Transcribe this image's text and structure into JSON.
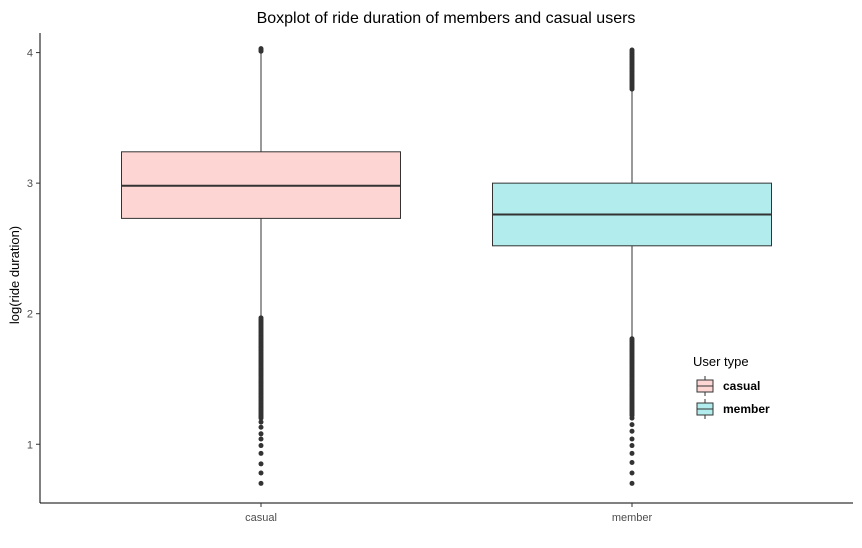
{
  "chart_data": {
    "type": "boxplot",
    "title": "Boxplot of ride duration of members and casual users",
    "xlabel": "",
    "ylabel": "log(ride duration)",
    "categories": [
      "casual",
      "member"
    ],
    "ylim": [
      0.55,
      4.15
    ],
    "yticks": [
      1,
      2,
      3,
      4
    ],
    "grid": false,
    "legend": {
      "title": "User type",
      "placement": "right",
      "entries": [
        "casual",
        "member"
      ]
    },
    "colors": {
      "casual": "#fdd5d3",
      "member": "#b3ecec",
      "outline": "#333333",
      "outlier": "#333333"
    },
    "boxes": [
      {
        "name": "casual",
        "q1": 2.73,
        "median": 2.98,
        "q3": 3.24,
        "whisker_low": 1.98,
        "whisker_high": 4.0,
        "outliers_low_dense_range": [
          1.2,
          1.97
        ],
        "outliers_low_sparse": [
          0.7,
          0.78,
          0.85,
          0.93,
          0.99,
          1.04,
          1.08,
          1.13,
          1.17
        ],
        "outliers_high": [
          4.01,
          4.02,
          4.03
        ]
      },
      {
        "name": "member",
        "q1": 2.52,
        "median": 2.76,
        "q3": 3.0,
        "whisker_low": 1.82,
        "whisker_high": 3.72,
        "outliers_low_dense_range": [
          1.22,
          1.81
        ],
        "outliers_low_sparse": [
          0.7,
          0.78,
          0.86,
          0.93,
          0.99,
          1.04,
          1.1,
          1.15,
          1.2
        ],
        "outliers_high_dense_range": [
          3.72,
          4.03
        ]
      }
    ]
  }
}
